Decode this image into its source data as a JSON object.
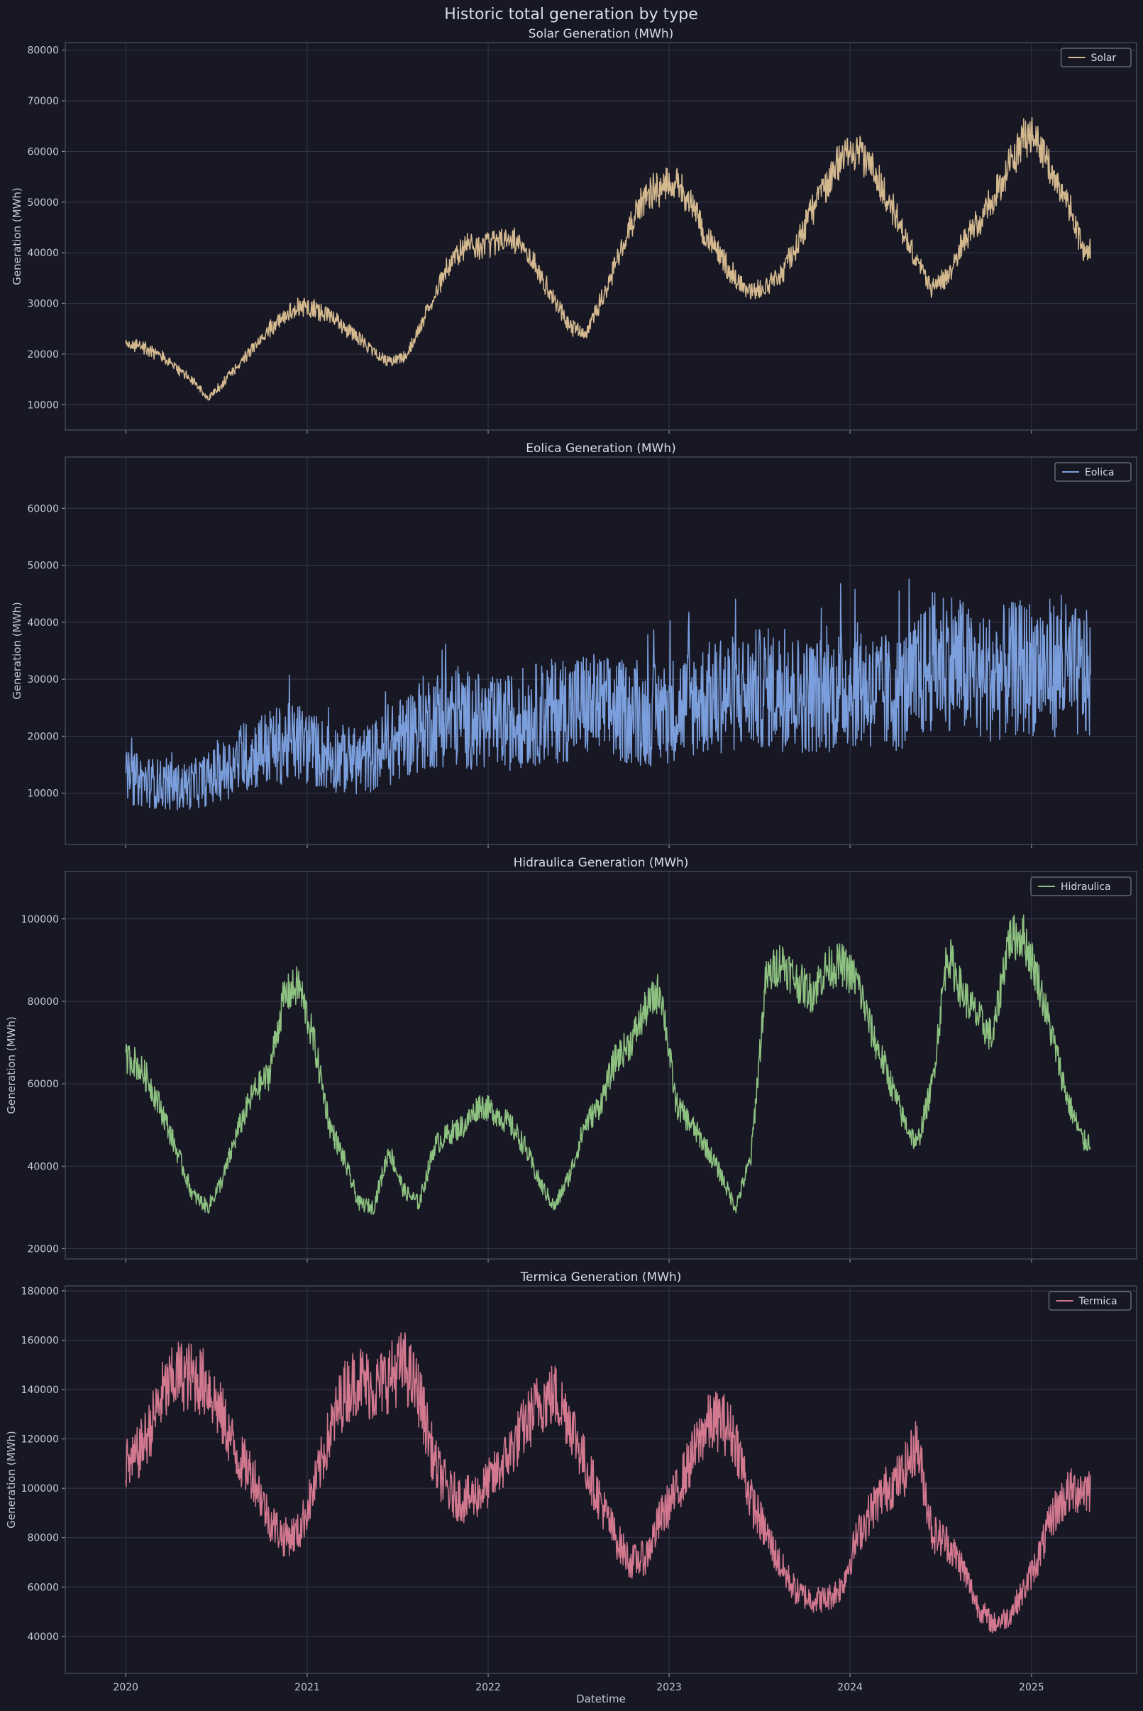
{
  "figure": {
    "suptitle": "Historic total generation by type",
    "xlabel": "Datetime",
    "background": "#181824"
  },
  "chart_data": {
    "type": "line",
    "x_unit": "date (daily)",
    "x_range": [
      "2020-01-01",
      "2025-04-30"
    ],
    "x_ticks": [
      "2020",
      "2021",
      "2022",
      "2023",
      "2024",
      "2025"
    ],
    "grid": true,
    "shared_x": true,
    "panels": [
      {
        "title": "Solar Generation (MWh)",
        "ylabel": "Generation (MWh)",
        "series": [
          {
            "name": "Solar",
            "color": "#d4b98f"
          }
        ],
        "legend": "top-right",
        "ylim": [
          5000,
          81500
        ],
        "yticks": [
          10000,
          20000,
          30000,
          40000,
          50000,
          60000,
          70000,
          80000
        ],
        "monthly_points": [
          [
            "2020-01",
            23000
          ],
          [
            "2020-02",
            22000
          ],
          [
            "2020-03",
            20500
          ],
          [
            "2020-04",
            18000
          ],
          [
            "2020-05",
            15500
          ],
          [
            "2020-06",
            12000
          ],
          [
            "2020-07",
            15000
          ],
          [
            "2020-08",
            19000
          ],
          [
            "2020-09",
            22500
          ],
          [
            "2020-10",
            26000
          ],
          [
            "2020-11",
            29000
          ],
          [
            "2020-12",
            31000
          ],
          [
            "2021-01",
            30500
          ],
          [
            "2021-02",
            29500
          ],
          [
            "2021-03",
            27000
          ],
          [
            "2021-04",
            24500
          ],
          [
            "2021-05",
            21500
          ],
          [
            "2021-06",
            19500
          ],
          [
            "2021-07",
            20500
          ],
          [
            "2021-08",
            26000
          ],
          [
            "2021-09",
            34000
          ],
          [
            "2021-10",
            40000
          ],
          [
            "2021-11",
            44000
          ],
          [
            "2021-12",
            43500
          ],
          [
            "2022-01",
            45000
          ],
          [
            "2022-02",
            45500
          ],
          [
            "2022-03",
            43000
          ],
          [
            "2022-04",
            38000
          ],
          [
            "2022-05",
            32000
          ],
          [
            "2022-06",
            27000
          ],
          [
            "2022-07",
            25000
          ],
          [
            "2022-08",
            32000
          ],
          [
            "2022-09",
            40000
          ],
          [
            "2022-10",
            48000
          ],
          [
            "2022-11",
            54000
          ],
          [
            "2022-12",
            56000
          ],
          [
            "2023-01",
            57000
          ],
          [
            "2023-02",
            53000
          ],
          [
            "2023-03",
            46000
          ],
          [
            "2023-04",
            41000
          ],
          [
            "2023-05",
            37000
          ],
          [
            "2023-06",
            34000
          ],
          [
            "2023-07",
            35000
          ],
          [
            "2023-08",
            38000
          ],
          [
            "2023-09",
            44000
          ],
          [
            "2023-10",
            51000
          ],
          [
            "2023-11",
            57000
          ],
          [
            "2023-12",
            62000
          ],
          [
            "2024-01",
            63000
          ],
          [
            "2024-02",
            60000
          ],
          [
            "2024-03",
            54000
          ],
          [
            "2024-04",
            47000
          ],
          [
            "2024-05",
            40000
          ],
          [
            "2024-06",
            35000
          ],
          [
            "2024-07",
            37000
          ],
          [
            "2024-08",
            44000
          ],
          [
            "2024-09",
            49000
          ],
          [
            "2024-10",
            53000
          ],
          [
            "2024-11",
            60000
          ],
          [
            "2024-12",
            66000
          ],
          [
            "2025-01",
            66000
          ],
          [
            "2025-02",
            58000
          ],
          [
            "2025-03",
            53000
          ],
          [
            "2025-04",
            43000
          ]
        ]
      },
      {
        "title": "Eolica Generation (MWh)",
        "ylabel": "Generation (MWh)",
        "series": [
          {
            "name": "Eolica",
            "color": "#7b9fdd"
          }
        ],
        "legend": "top-right",
        "ylim": [
          1000,
          69000
        ],
        "yticks": [
          10000,
          20000,
          30000,
          40000,
          50000,
          60000
        ],
        "monthly_points": [
          [
            "2020-01",
            12500
          ],
          [
            "2020-02",
            12000
          ],
          [
            "2020-03",
            11500
          ],
          [
            "2020-04",
            11000
          ],
          [
            "2020-05",
            11500
          ],
          [
            "2020-06",
            12500
          ],
          [
            "2020-07",
            14000
          ],
          [
            "2020-08",
            15500
          ],
          [
            "2020-09",
            17000
          ],
          [
            "2020-10",
            18000
          ],
          [
            "2020-11",
            18500
          ],
          [
            "2020-12",
            19000
          ],
          [
            "2021-01",
            17500
          ],
          [
            "2021-02",
            16500
          ],
          [
            "2021-03",
            16000
          ],
          [
            "2021-04",
            15500
          ],
          [
            "2021-05",
            16500
          ],
          [
            "2021-06",
            18000
          ],
          [
            "2021-07",
            20000
          ],
          [
            "2021-08",
            22000
          ],
          [
            "2021-09",
            23000
          ],
          [
            "2021-10",
            23500
          ],
          [
            "2021-11",
            23000
          ],
          [
            "2021-12",
            22500
          ],
          [
            "2022-01",
            22000
          ],
          [
            "2022-02",
            22500
          ],
          [
            "2022-03",
            23500
          ],
          [
            "2022-04",
            24000
          ],
          [
            "2022-05",
            24500
          ],
          [
            "2022-06",
            25000
          ],
          [
            "2022-07",
            25500
          ],
          [
            "2022-08",
            25000
          ],
          [
            "2022-09",
            24500
          ],
          [
            "2022-10",
            24000
          ],
          [
            "2022-11",
            23500
          ],
          [
            "2022-12",
            24000
          ],
          [
            "2023-01",
            25000
          ],
          [
            "2023-02",
            26000
          ],
          [
            "2023-03",
            26500
          ],
          [
            "2023-04",
            27000
          ],
          [
            "2023-05",
            27500
          ],
          [
            "2023-06",
            28000
          ],
          [
            "2023-07",
            28500
          ],
          [
            "2023-08",
            28000
          ],
          [
            "2023-09",
            27500
          ],
          [
            "2023-10",
            27000
          ],
          [
            "2023-11",
            27500
          ],
          [
            "2023-12",
            28500
          ],
          [
            "2024-01",
            29000
          ],
          [
            "2024-02",
            28000
          ],
          [
            "2024-03",
            27000
          ],
          [
            "2024-04",
            28000
          ],
          [
            "2024-05",
            29500
          ],
          [
            "2024-06",
            33000
          ],
          [
            "2024-07",
            34000
          ],
          [
            "2024-08",
            32000
          ],
          [
            "2024-09",
            30000
          ],
          [
            "2024-10",
            30500
          ],
          [
            "2024-11",
            31500
          ],
          [
            "2024-12",
            32000
          ],
          [
            "2025-01",
            32500
          ],
          [
            "2025-02",
            32000
          ],
          [
            "2025-03",
            31500
          ],
          [
            "2025-04",
            30500
          ]
        ]
      },
      {
        "title": "Hidraulica Generation (MWh)",
        "ylabel": "Generation (MWh)",
        "series": [
          {
            "name": "Hidraulica",
            "color": "#8ec281"
          }
        ],
        "legend": "top-right",
        "ylim": [
          17500,
          111500
        ],
        "yticks": [
          20000,
          40000,
          60000,
          80000,
          100000
        ],
        "monthly_points": [
          [
            "2020-01",
            66000
          ],
          [
            "2020-02",
            61000
          ],
          [
            "2020-03",
            53000
          ],
          [
            "2020-04",
            43000
          ],
          [
            "2020-05",
            33000
          ],
          [
            "2020-06",
            30000
          ],
          [
            "2020-07",
            37000
          ],
          [
            "2020-08",
            49000
          ],
          [
            "2020-09",
            58000
          ],
          [
            "2020-10",
            62000
          ],
          [
            "2020-11",
            81000
          ],
          [
            "2020-12",
            84000
          ],
          [
            "2021-01",
            70000
          ],
          [
            "2021-02",
            50000
          ],
          [
            "2021-03",
            42000
          ],
          [
            "2021-04",
            31000
          ],
          [
            "2021-05",
            30000
          ],
          [
            "2021-06",
            44000
          ],
          [
            "2021-07",
            34000
          ],
          [
            "2021-08",
            31000
          ],
          [
            "2021-09",
            45000
          ],
          [
            "2021-10",
            48000
          ],
          [
            "2021-11",
            50000
          ],
          [
            "2021-12",
            55000
          ],
          [
            "2022-01",
            53000
          ],
          [
            "2022-02",
            50000
          ],
          [
            "2022-03",
            45000
          ],
          [
            "2022-04",
            36000
          ],
          [
            "2022-05",
            30000
          ],
          [
            "2022-06",
            38000
          ],
          [
            "2022-07",
            50000
          ],
          [
            "2022-08",
            55000
          ],
          [
            "2022-09",
            66000
          ],
          [
            "2022-10",
            70000
          ],
          [
            "2022-11",
            78000
          ],
          [
            "2022-12",
            83000
          ],
          [
            "2023-01",
            55000
          ],
          [
            "2023-02",
            50000
          ],
          [
            "2023-03",
            45000
          ],
          [
            "2023-04",
            38000
          ],
          [
            "2023-05",
            30000
          ],
          [
            "2023-06",
            42000
          ],
          [
            "2023-07",
            85000
          ],
          [
            "2023-08",
            90000
          ],
          [
            "2023-09",
            85000
          ],
          [
            "2023-10",
            82000
          ],
          [
            "2023-11",
            88000
          ],
          [
            "2023-12",
            89000
          ],
          [
            "2024-01",
            85000
          ],
          [
            "2024-02",
            72000
          ],
          [
            "2024-03",
            63000
          ],
          [
            "2024-04",
            52000
          ],
          [
            "2024-05",
            45000
          ],
          [
            "2024-06",
            60000
          ],
          [
            "2024-07",
            92000
          ],
          [
            "2024-08",
            82000
          ],
          [
            "2024-09",
            76000
          ],
          [
            "2024-10",
            71000
          ],
          [
            "2024-11",
            95000
          ],
          [
            "2024-12",
            96000
          ],
          [
            "2025-01",
            85000
          ],
          [
            "2025-02",
            70000
          ],
          [
            "2025-03",
            56000
          ],
          [
            "2025-04",
            46000
          ]
        ]
      },
      {
        "title": "Termica Generation (MWh)",
        "ylabel": "Generation (MWh)",
        "series": [
          {
            "name": "Termica",
            "color": "#d2788f"
          }
        ],
        "legend": "top-right",
        "ylim": [
          25000,
          182000
        ],
        "yticks": [
          40000,
          60000,
          80000,
          100000,
          120000,
          140000,
          160000,
          180000
        ],
        "monthly_points": [
          [
            "2020-01",
            110000
          ],
          [
            "2020-02",
            122000
          ],
          [
            "2020-03",
            138000
          ],
          [
            "2020-04",
            146000
          ],
          [
            "2020-05",
            145000
          ],
          [
            "2020-06",
            142000
          ],
          [
            "2020-07",
            128000
          ],
          [
            "2020-08",
            112000
          ],
          [
            "2020-09",
            105000
          ],
          [
            "2020-10",
            88000
          ],
          [
            "2020-11",
            80000
          ],
          [
            "2020-12",
            82000
          ],
          [
            "2021-01",
            100000
          ],
          [
            "2021-02",
            122000
          ],
          [
            "2021-03",
            138000
          ],
          [
            "2021-04",
            145000
          ],
          [
            "2021-05",
            140000
          ],
          [
            "2021-06",
            145000
          ],
          [
            "2021-07",
            150000
          ],
          [
            "2021-08",
            138000
          ],
          [
            "2021-09",
            110000
          ],
          [
            "2021-10",
            98000
          ],
          [
            "2021-11",
            95000
          ],
          [
            "2021-12",
            98000
          ],
          [
            "2022-01",
            105000
          ],
          [
            "2022-02",
            115000
          ],
          [
            "2022-03",
            125000
          ],
          [
            "2022-04",
            135000
          ],
          [
            "2022-05",
            138000
          ],
          [
            "2022-06",
            128000
          ],
          [
            "2022-07",
            110000
          ],
          [
            "2022-08",
            95000
          ],
          [
            "2022-09",
            80000
          ],
          [
            "2022-10",
            70000
          ],
          [
            "2022-11",
            72000
          ],
          [
            "2022-12",
            88000
          ],
          [
            "2023-01",
            98000
          ],
          [
            "2023-02",
            112000
          ],
          [
            "2023-03",
            125000
          ],
          [
            "2023-04",
            128000
          ],
          [
            "2023-05",
            120000
          ],
          [
            "2023-06",
            95000
          ],
          [
            "2023-07",
            82000
          ],
          [
            "2023-08",
            68000
          ],
          [
            "2023-09",
            58000
          ],
          [
            "2023-10",
            55000
          ],
          [
            "2023-11",
            55000
          ],
          [
            "2023-12",
            60000
          ],
          [
            "2024-01",
            80000
          ],
          [
            "2024-02",
            92000
          ],
          [
            "2024-03",
            100000
          ],
          [
            "2024-04",
            105000
          ],
          [
            "2024-05",
            118000
          ],
          [
            "2024-06",
            82000
          ],
          [
            "2024-07",
            78000
          ],
          [
            "2024-08",
            68000
          ],
          [
            "2024-09",
            52000
          ],
          [
            "2024-10",
            45000
          ],
          [
            "2024-11",
            48000
          ],
          [
            "2024-12",
            58000
          ],
          [
            "2025-01",
            72000
          ],
          [
            "2025-02",
            90000
          ],
          [
            "2025-03",
            98000
          ],
          [
            "2025-04",
            100000
          ]
        ]
      }
    ]
  }
}
